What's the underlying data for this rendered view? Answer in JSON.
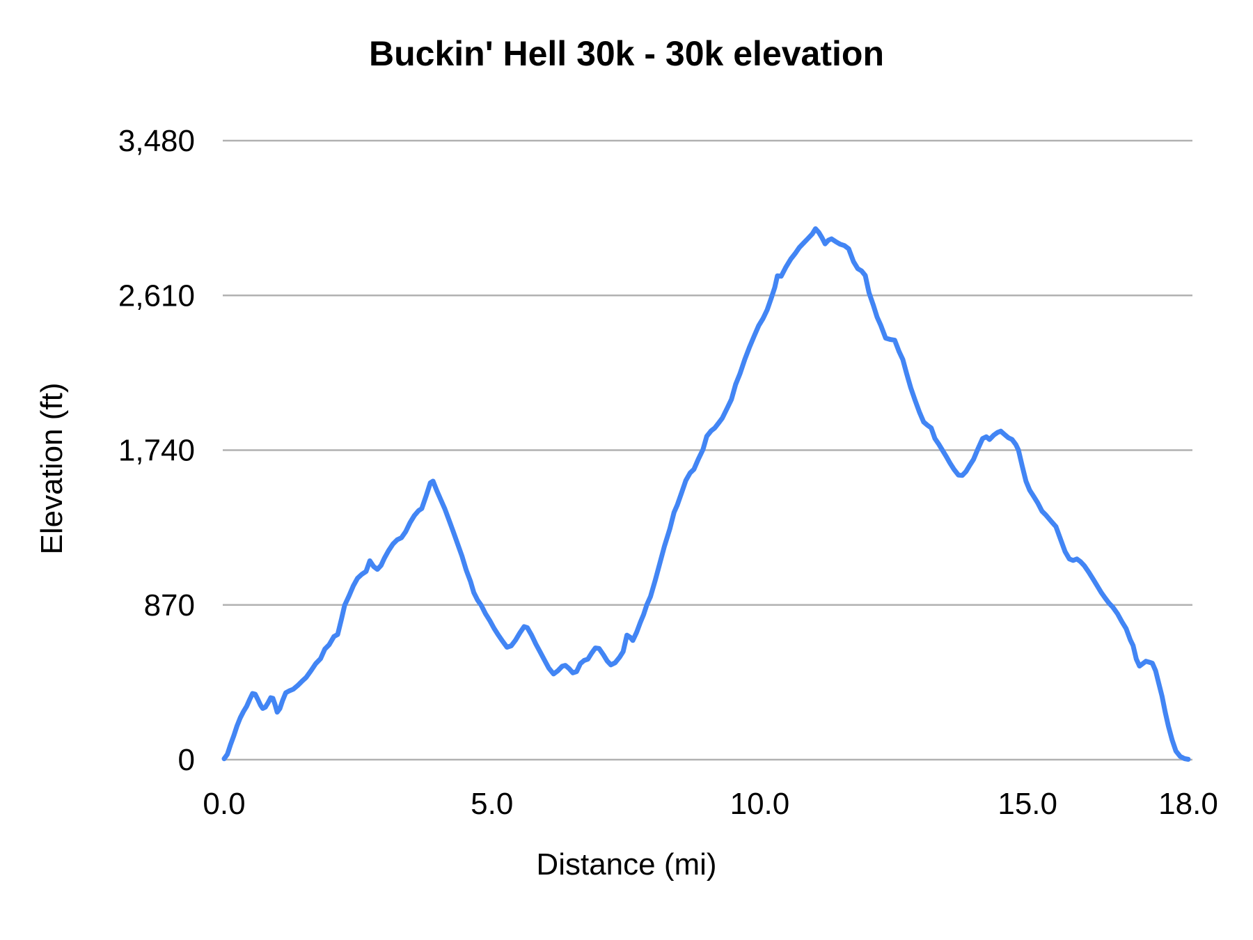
{
  "chart": {
    "title": "Buckin' Hell 30k - 30k elevation",
    "xlabel": "Distance (mi)",
    "ylabel": "Elevation (ft)"
  },
  "colors": {
    "line": "#4285f4",
    "gridline": "#b1b1b1",
    "text": "#000000",
    "background": "#ffffff"
  },
  "chart_data": {
    "type": "line",
    "title": "Buckin' Hell 30k - 30k elevation",
    "xlabel": "Distance (mi)",
    "ylabel": "Elevation (ft)",
    "xlim": [
      0,
      18
    ],
    "ylim": [
      0,
      3480
    ],
    "grid": "horizontal",
    "legend": "none",
    "x_ticks": {
      "values": [
        0,
        5,
        10,
        15,
        18
      ],
      "labels": [
        "0.0",
        "5.0",
        "10.0",
        "15.0",
        "18.0"
      ]
    },
    "y_ticks": {
      "values": [
        0,
        870,
        1740,
        2610,
        3480
      ],
      "labels": [
        "0",
        "870",
        "1,740",
        "2,610",
        "3,480"
      ]
    },
    "series": [
      {
        "name": "elevation",
        "color": "#4285f4",
        "points": [
          [
            0,
            5
          ],
          [
            0.06,
            30
          ],
          [
            0.12,
            85
          ],
          [
            0.18,
            135
          ],
          [
            0.24,
            190
          ],
          [
            0.3,
            235
          ],
          [
            0.36,
            270
          ],
          [
            0.42,
            300
          ],
          [
            0.48,
            340
          ],
          [
            0.53,
            372
          ],
          [
            0.58,
            368
          ],
          [
            0.63,
            338
          ],
          [
            0.68,
            306
          ],
          [
            0.72,
            288
          ],
          [
            0.77,
            295
          ],
          [
            0.82,
            320
          ],
          [
            0.87,
            348
          ],
          [
            0.91,
            345
          ],
          [
            0.95,
            310
          ],
          [
            0.99,
            267
          ],
          [
            1.04,
            287
          ],
          [
            1.09,
            332
          ],
          [
            1.15,
            376
          ],
          [
            1.21,
            386
          ],
          [
            1.29,
            396
          ],
          [
            1.37,
            416
          ],
          [
            1.45,
            440
          ],
          [
            1.53,
            462
          ],
          [
            1.62,
            500
          ],
          [
            1.71,
            540
          ],
          [
            1.8,
            568
          ],
          [
            1.88,
            622
          ],
          [
            1.96,
            646
          ],
          [
            2.05,
            692
          ],
          [
            2.12,
            704
          ],
          [
            2.19,
            790
          ],
          [
            2.25,
            868
          ],
          [
            2.33,
            920
          ],
          [
            2.41,
            976
          ],
          [
            2.49,
            1020
          ],
          [
            2.57,
            1042
          ],
          [
            2.65,
            1058
          ],
          [
            2.72,
            1118
          ],
          [
            2.79,
            1086
          ],
          [
            2.86,
            1070
          ],
          [
            2.93,
            1092
          ],
          [
            2.99,
            1132
          ],
          [
            3.07,
            1175
          ],
          [
            3.15,
            1212
          ],
          [
            3.23,
            1236
          ],
          [
            3.31,
            1248
          ],
          [
            3.39,
            1282
          ],
          [
            3.47,
            1332
          ],
          [
            3.55,
            1372
          ],
          [
            3.63,
            1400
          ],
          [
            3.69,
            1412
          ],
          [
            3.77,
            1482
          ],
          [
            3.85,
            1556
          ],
          [
            3.9,
            1566
          ],
          [
            3.97,
            1512
          ],
          [
            4.04,
            1464
          ],
          [
            4.12,
            1410
          ],
          [
            4.2,
            1345
          ],
          [
            4.28,
            1280
          ],
          [
            4.36,
            1212
          ],
          [
            4.44,
            1145
          ],
          [
            4.52,
            1065
          ],
          [
            4.6,
            1002
          ],
          [
            4.66,
            940
          ],
          [
            4.73,
            898
          ],
          [
            4.8,
            868
          ],
          [
            4.88,
            820
          ],
          [
            4.96,
            782
          ],
          [
            5.04,
            738
          ],
          [
            5.12,
            700
          ],
          [
            5.2,
            665
          ],
          [
            5.28,
            632
          ],
          [
            5.36,
            640
          ],
          [
            5.44,
            672
          ],
          [
            5.52,
            712
          ],
          [
            5.6,
            748
          ],
          [
            5.66,
            742
          ],
          [
            5.74,
            700
          ],
          [
            5.82,
            650
          ],
          [
            5.9,
            605
          ],
          [
            5.98,
            560
          ],
          [
            6.06,
            515
          ],
          [
            6.15,
            482
          ],
          [
            6.23,
            500
          ],
          [
            6.31,
            525
          ],
          [
            6.37,
            530
          ],
          [
            6.44,
            512
          ],
          [
            6.51,
            488
          ],
          [
            6.58,
            495
          ],
          [
            6.65,
            540
          ],
          [
            6.72,
            558
          ],
          [
            6.79,
            565
          ],
          [
            6.86,
            598
          ],
          [
            6.93,
            628
          ],
          [
            7,
            625
          ],
          [
            7.08,
            590
          ],
          [
            7.15,
            555
          ],
          [
            7.22,
            533
          ],
          [
            7.3,
            545
          ],
          [
            7.38,
            575
          ],
          [
            7.45,
            608
          ],
          [
            7.52,
            700
          ],
          [
            7.58,
            688
          ],
          [
            7.63,
            670
          ],
          [
            7.7,
            715
          ],
          [
            7.77,
            772
          ],
          [
            7.83,
            815
          ],
          [
            7.89,
            870
          ],
          [
            7.96,
            917
          ],
          [
            8.05,
            1010
          ],
          [
            8.13,
            1100
          ],
          [
            8.22,
            1200
          ],
          [
            8.32,
            1297
          ],
          [
            8.4,
            1390
          ],
          [
            8.46,
            1432
          ],
          [
            8.54,
            1500
          ],
          [
            8.62,
            1570
          ],
          [
            8.7,
            1612
          ],
          [
            8.77,
            1632
          ],
          [
            8.85,
            1688
          ],
          [
            8.94,
            1744
          ],
          [
            9.01,
            1818
          ],
          [
            9.09,
            1848
          ],
          [
            9.16,
            1865
          ],
          [
            9.23,
            1892
          ],
          [
            9.3,
            1920
          ],
          [
            9.39,
            1975
          ],
          [
            9.47,
            2025
          ],
          [
            9.55,
            2110
          ],
          [
            9.63,
            2170
          ],
          [
            9.72,
            2250
          ],
          [
            9.81,
            2320
          ],
          [
            9.9,
            2385
          ],
          [
            9.98,
            2440
          ],
          [
            10.06,
            2480
          ],
          [
            10.14,
            2530
          ],
          [
            10.22,
            2600
          ],
          [
            10.28,
            2655
          ],
          [
            10.33,
            2720
          ],
          [
            10.4,
            2718
          ],
          [
            10.49,
            2770
          ],
          [
            10.58,
            2815
          ],
          [
            10.66,
            2845
          ],
          [
            10.74,
            2880
          ],
          [
            10.82,
            2905
          ],
          [
            10.9,
            2930
          ],
          [
            10.98,
            2955
          ],
          [
            11.04,
            2985
          ],
          [
            11.1,
            2965
          ],
          [
            11.16,
            2935
          ],
          [
            11.22,
            2900
          ],
          [
            11.28,
            2920
          ],
          [
            11.34,
            2928
          ],
          [
            11.42,
            2912
          ],
          [
            11.5,
            2898
          ],
          [
            11.58,
            2890
          ],
          [
            11.66,
            2872
          ],
          [
            11.75,
            2800
          ],
          [
            11.83,
            2760
          ],
          [
            11.9,
            2748
          ],
          [
            11.97,
            2722
          ],
          [
            12.04,
            2625
          ],
          [
            12.12,
            2555
          ],
          [
            12.19,
            2488
          ],
          [
            12.26,
            2442
          ],
          [
            12.35,
            2370
          ],
          [
            12.44,
            2362
          ],
          [
            12.52,
            2358
          ],
          [
            12.6,
            2295
          ],
          [
            12.67,
            2250
          ],
          [
            12.74,
            2172
          ],
          [
            12.82,
            2090
          ],
          [
            12.9,
            2020
          ],
          [
            12.98,
            1955
          ],
          [
            13.06,
            1898
          ],
          [
            13.13,
            1880
          ],
          [
            13.2,
            1865
          ],
          [
            13.27,
            1805
          ],
          [
            13.34,
            1775
          ],
          [
            13.41,
            1740
          ],
          [
            13.48,
            1705
          ],
          [
            13.55,
            1668
          ],
          [
            13.63,
            1630
          ],
          [
            13.71,
            1600
          ],
          [
            13.78,
            1598
          ],
          [
            13.85,
            1620
          ],
          [
            13.92,
            1655
          ],
          [
            13.99,
            1688
          ],
          [
            14.07,
            1745
          ],
          [
            14.16,
            1805
          ],
          [
            14.23,
            1815
          ],
          [
            14.29,
            1800
          ],
          [
            14.37,
            1825
          ],
          [
            14.44,
            1840
          ],
          [
            14.5,
            1847
          ],
          [
            14.57,
            1828
          ],
          [
            14.64,
            1810
          ],
          [
            14.71,
            1800
          ],
          [
            14.78,
            1772
          ],
          [
            14.83,
            1740
          ],
          [
            14.9,
            1650
          ],
          [
            14.97,
            1565
          ],
          [
            15.04,
            1515
          ],
          [
            15.11,
            1482
          ],
          [
            15.19,
            1443
          ],
          [
            15.27,
            1397
          ],
          [
            15.34,
            1376
          ],
          [
            15.45,
            1337
          ],
          [
            15.53,
            1310
          ],
          [
            15.62,
            1235
          ],
          [
            15.7,
            1170
          ],
          [
            15.78,
            1128
          ],
          [
            15.85,
            1120
          ],
          [
            15.92,
            1128
          ],
          [
            15.99,
            1113
          ],
          [
            16.06,
            1090
          ],
          [
            16.14,
            1055
          ],
          [
            16.23,
            1012
          ],
          [
            16.31,
            972
          ],
          [
            16.38,
            938
          ],
          [
            16.45,
            908
          ],
          [
            16.52,
            880
          ],
          [
            16.59,
            858
          ],
          [
            16.68,
            820
          ],
          [
            16.76,
            776
          ],
          [
            16.84,
            737
          ],
          [
            16.92,
            672
          ],
          [
            16.97,
            642
          ],
          [
            17.03,
            565
          ],
          [
            17.09,
            526
          ],
          [
            17.15,
            540
          ],
          [
            17.21,
            553
          ],
          [
            17.27,
            548
          ],
          [
            17.33,
            542
          ],
          [
            17.39,
            500
          ],
          [
            17.45,
            428
          ],
          [
            17.51,
            357
          ],
          [
            17.57,
            267
          ],
          [
            17.63,
            188
          ],
          [
            17.7,
            110
          ],
          [
            17.77,
            48
          ],
          [
            17.85,
            18
          ],
          [
            17.93,
            6
          ],
          [
            18,
            2
          ]
        ]
      }
    ]
  }
}
